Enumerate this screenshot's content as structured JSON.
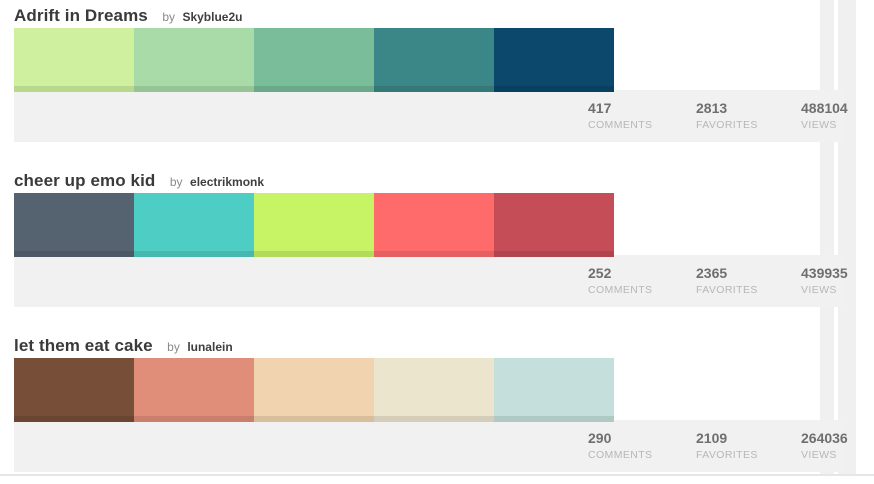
{
  "palettes": [
    {
      "title": "Adrift in Dreams",
      "by": "by",
      "author": "Skyblue2u",
      "colors": [
        "#cff09e",
        "#a8dba8",
        "#79bd9a",
        "#3b8686",
        "#0b486b"
      ],
      "comments": "417",
      "favorites": "2813",
      "views": "488104"
    },
    {
      "title": "cheer up emo kid",
      "by": "by",
      "author": "electrikmonk",
      "colors": [
        "#556270",
        "#4ecdc4",
        "#c7f464",
        "#ff6b6b",
        "#c44d58"
      ],
      "comments": "252",
      "favorites": "2365",
      "views": "439935"
    },
    {
      "title": "let them eat cake",
      "by": "by",
      "author": "lunalein",
      "colors": [
        "#774f38",
        "#e08e79",
        "#f1d4af",
        "#ece5ce",
        "#c5e0dc"
      ],
      "comments": "290",
      "favorites": "2109",
      "views": "264036"
    }
  ],
  "labels": {
    "comments": "COMMENTS",
    "favorites": "FAVORITES",
    "views": "VIEWS"
  }
}
